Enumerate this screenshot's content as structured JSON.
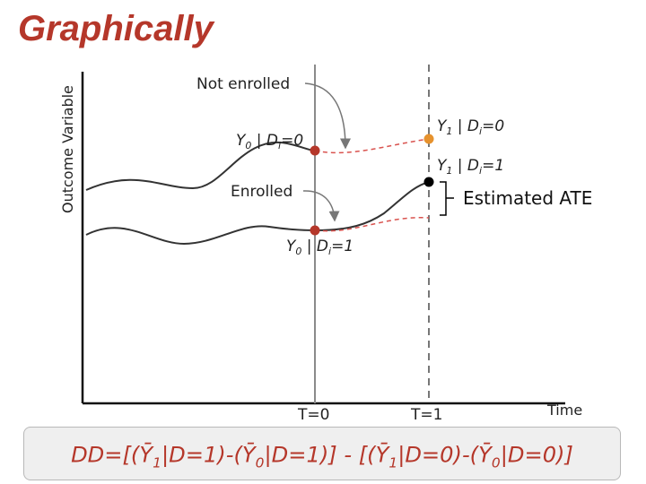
{
  "slide": {
    "title": "Graphically"
  },
  "axes": {
    "y_label": "Outcome Variable",
    "x_label": "Time",
    "t0_label": "T=0",
    "t1_label": "T=1"
  },
  "annotations": {
    "not_enrolled": "Not enrolled",
    "enrolled": "Enrolled",
    "estimated_ate": "Estimated ATE"
  },
  "points": {
    "y0_control": {
      "base": "Y",
      "sub": "0",
      "rest": " | D",
      "sub2": "i",
      "tail": "=0"
    },
    "y1_control_cf": {
      "base": "Y",
      "sub": "1",
      "rest": " | D",
      "sub2": "i",
      "tail": "=0"
    },
    "y1_treated": {
      "base": "Y",
      "sub": "1",
      "rest": " | D",
      "sub2": "i",
      "tail": "=1"
    },
    "y0_treated": {
      "base": "Y",
      "sub": "0",
      "rest": " | D",
      "sub2": "i",
      "tail": "=1"
    }
  },
  "formula": {
    "parts": [
      {
        "t": "DD=[(Ȳ"
      },
      {
        "s": "1"
      },
      {
        "t": "|D=1)-(Ȳ"
      },
      {
        "s": "0"
      },
      {
        "t": "|D=1)] - [(Ȳ"
      },
      {
        "s": "1"
      },
      {
        "t": "|D=0)-(Ȳ"
      },
      {
        "s": "0"
      },
      {
        "t": "|D=0)]"
      }
    ]
  },
  "colors": {
    "title": "#b5372a",
    "point_red": "#b5372a",
    "point_orange": "#e6922e",
    "point_black": "#000000",
    "dashed_red": "#d9534f"
  }
}
